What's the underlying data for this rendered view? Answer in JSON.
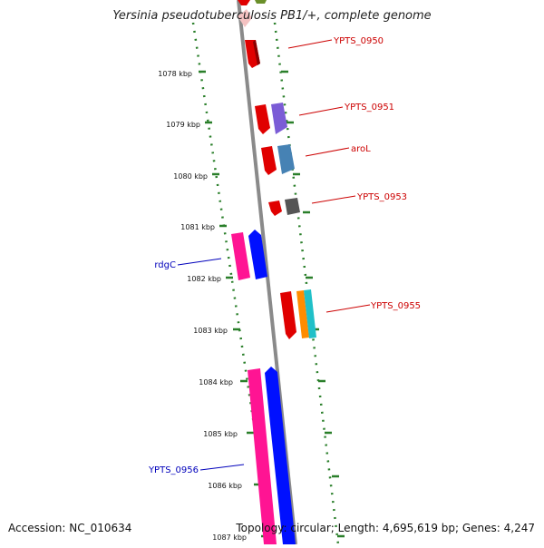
{
  "title": "Yersinia pseudotuberculosis PB1/+, complete genome",
  "footer": {
    "accession": "Accession: NC_010634",
    "topology": "Topology: circular; Length: 4,695,619 bp; Genes: 4,247"
  },
  "ticks": [
    "1078 kbp",
    "1079 kbp",
    "1080 kbp",
    "1081 kbp",
    "1082 kbp",
    "1083 kbp",
    "1084 kbp",
    "1085 kbp",
    "1086 kbp",
    "1087 kbp"
  ],
  "genes": [
    {
      "label": "YPTS_0950",
      "color": "#cc0000"
    },
    {
      "label": "YPTS_0951",
      "color": "#cc0000"
    },
    {
      "label": "aroL",
      "color": "#cc0000"
    },
    {
      "label": "YPTS_0953",
      "color": "#cc0000"
    },
    {
      "label": "YPTS_0955",
      "color": "#cc0000"
    },
    {
      "label": "rdgC",
      "color": "#0000bb"
    },
    {
      "label": "YPTS_0956",
      "color": "#0000bb"
    }
  ],
  "colors": {
    "backbone": "#8a8a8a",
    "scale_dots": "#2a7f2a",
    "red_gene": "#e00000",
    "blue_gene": "#0010ff",
    "magenta_gene": "#ff1493",
    "purple_gene": "#7b5cd6",
    "steel_gene": "#4682b4",
    "gray_gene": "#555555",
    "orange_gene": "#ff8c00",
    "cyan_gene": "#20c0c8"
  }
}
